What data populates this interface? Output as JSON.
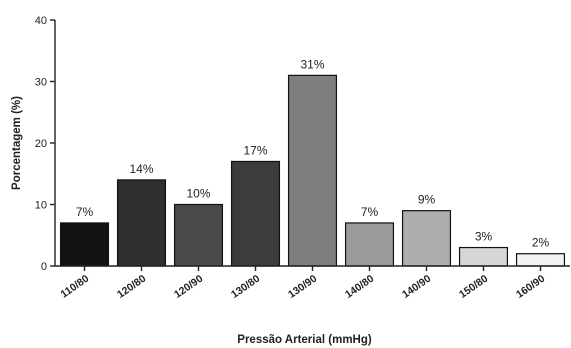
{
  "chart_data": {
    "type": "bar",
    "title": "",
    "xlabel": "Pressão Arterial (mmHg)",
    "ylabel": "Porcentagem (%)",
    "ylim": [
      0,
      40
    ],
    "yticks": [
      0,
      10,
      20,
      30,
      40
    ],
    "grid": false,
    "categories": [
      "110/80",
      "120/80",
      "120/90",
      "130/80",
      "130/90",
      "140/80",
      "140/90",
      "150/80",
      "160/90"
    ],
    "values": [
      7,
      14,
      10,
      17,
      31,
      7,
      9,
      3,
      2
    ],
    "value_labels": [
      "7%",
      "14%",
      "10%",
      "17%",
      "31%",
      "7%",
      "9%",
      "3%",
      "2%"
    ],
    "colors": [
      "#121212",
      "#2f2f2f",
      "#4a4a4a",
      "#3c3c3c",
      "#7e7e7e",
      "#9a9a9a",
      "#aeaeae",
      "#d6d6d6",
      "#f2f2f2"
    ]
  }
}
